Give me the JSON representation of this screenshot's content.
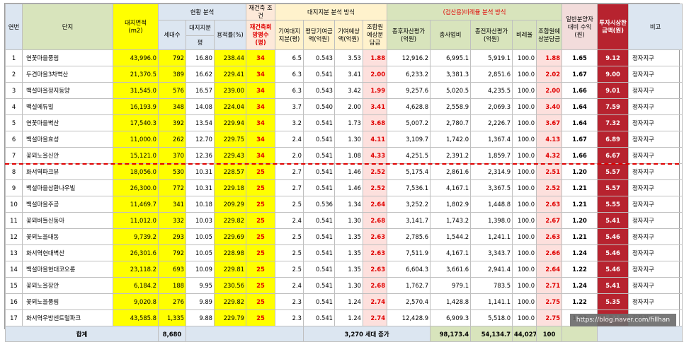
{
  "header": {
    "no": "연번",
    "name": "단지",
    "area": "대지면적",
    "area_unit": "(m2)",
    "group_current": "현황 분석",
    "group_rebuild": "재건축 조건",
    "households": "세대수",
    "land_share": "대지지분",
    "land_share_unit": "평",
    "far": "용적률(%)",
    "desired": "재건축희망평수(평)",
    "group_land": "대지지분 분석 방식",
    "land_pyeong": "기여대지지분(평)",
    "price_per_py": "평당기여금액(억원)",
    "contrib_value": "기여예상액(억원)",
    "share_ret": "조합원예상분담금",
    "group_ratio": "(검산용)비례율 분석 방식",
    "after_asset": "종후자산평가(억원)",
    "project_cost": "총사업비",
    "before_asset": "종전자산평가(억원)",
    "ratio": "비례율",
    "share_ret2": "조합원예상분담금",
    "general_sale": "일반분양자대비 수익(원)",
    "invest": "투자시상한금액(원)",
    "note": "비고"
  },
  "rows": [
    {
      "no": "1",
      "name": "연꽃마을풍림",
      "area": "43,996.0",
      "households": "792",
      "land": "16.80",
      "far": "238.44",
      "desired": "34",
      "lp": "6.5",
      "price": "0.543",
      "cv": "3.53",
      "share": "1.88",
      "after": "12,916.2",
      "cost": "6,995.1",
      "before": "5,919.1",
      "ratio": "100.0",
      "share2": "1.88",
      "sale": "1.65",
      "invest": "9.12",
      "note": "정자지구"
    },
    {
      "no": "2",
      "name": "두견마을3차벽산",
      "area": "21,370.5",
      "households": "389",
      "land": "16.62",
      "far": "229.41",
      "desired": "34",
      "lp": "6.3",
      "price": "0.541",
      "cv": "3.41",
      "share": "2.00",
      "after": "6,233.2",
      "cost": "3,381.3",
      "before": "2,851.6",
      "ratio": "100.0",
      "share2": "2.02",
      "sale": "1.67",
      "invest": "9.00",
      "note": "정자지구"
    },
    {
      "no": "3",
      "name": "백설마을정지동양",
      "area": "31,545.0",
      "households": "576",
      "land": "16.57",
      "far": "239.00",
      "desired": "34",
      "lp": "6.3",
      "price": "0.543",
      "cv": "3.42",
      "share": "1.99",
      "after": "9,257.6",
      "cost": "5,020.5",
      "before": "4,235.5",
      "ratio": "100.0",
      "share2": "2.00",
      "sale": "1.66",
      "invest": "9.01",
      "note": "정자지구"
    },
    {
      "no": "4",
      "name": "백설에듀빌",
      "area": "16,193.9",
      "households": "348",
      "land": "14.08",
      "far": "224.04",
      "desired": "34",
      "lp": "3.7",
      "price": "0.540",
      "cv": "2.00",
      "share": "3.41",
      "after": "4,628.8",
      "cost": "2,558.9",
      "before": "2,069.3",
      "ratio": "100.0",
      "share2": "3.40",
      "sale": "1.64",
      "invest": "7.59",
      "note": "정자지구"
    },
    {
      "no": "5",
      "name": "연꽃마을벽산",
      "area": "17,540.3",
      "households": "392",
      "land": "13.54",
      "far": "229.94",
      "desired": "34",
      "lp": "3.2",
      "price": "0.541",
      "cv": "1.73",
      "share": "3.68",
      "after": "5,007.2",
      "cost": "2,780.7",
      "before": "2,226.7",
      "ratio": "100.0",
      "share2": "3.67",
      "sale": "1.64",
      "invest": "7.32",
      "note": "정자지구"
    },
    {
      "no": "6",
      "name": "백설마을효성",
      "area": "11,000.0",
      "households": "262",
      "land": "12.70",
      "far": "229.75",
      "desired": "34",
      "lp": "2.4",
      "price": "0.541",
      "cv": "1.30",
      "share": "4.11",
      "after": "3,109.7",
      "cost": "1,742.0",
      "before": "1,367.4",
      "ratio": "100.0",
      "share2": "4.13",
      "sale": "1.67",
      "invest": "6.89",
      "note": "정자지구"
    },
    {
      "no": "7",
      "name": "꽃뫼노을신안",
      "area": "15,121.0",
      "households": "370",
      "land": "12.36",
      "far": "229.43",
      "desired": "34",
      "lp": "2.0",
      "price": "0.541",
      "cv": "1.08",
      "share": "4.33",
      "after": "4,251.5",
      "cost": "2,391.2",
      "before": "1,859.7",
      "ratio": "100.0",
      "share2": "4.32",
      "sale": "1.66",
      "invest": "6.67",
      "note": "정자지구"
    },
    {
      "no": "8",
      "name": "화서역파크뷰",
      "area": "18,056.0",
      "households": "530",
      "land": "10.31",
      "far": "228.57",
      "desired": "25",
      "lp": "2.7",
      "price": "0.541",
      "cv": "1.46",
      "share": "2.52",
      "after": "5,175.4",
      "cost": "2,861.6",
      "before": "2,314.9",
      "ratio": "100.0",
      "share2": "2.51",
      "sale": "1.20",
      "invest": "5.57",
      "note": "정자지구"
    },
    {
      "no": "9",
      "name": "백설마을삼환나우빌",
      "area": "26,300.0",
      "households": "772",
      "land": "10.31",
      "far": "229.18",
      "desired": "25",
      "lp": "2.7",
      "price": "0.541",
      "cv": "1.46",
      "share": "2.52",
      "after": "7,536.1",
      "cost": "4,167.1",
      "before": "3,367.5",
      "ratio": "100.0",
      "share2": "2.52",
      "sale": "1.21",
      "invest": "5.57",
      "note": "정자지구"
    },
    {
      "no": "10",
      "name": "백설마을주공",
      "area": "11,469.7",
      "households": "341",
      "land": "10.18",
      "far": "209.29",
      "desired": "25",
      "lp": "2.5",
      "price": "0.536",
      "cv": "1.34",
      "share": "2.64",
      "after": "3,252.2",
      "cost": "1,802.9",
      "before": "1,448.8",
      "ratio": "100.0",
      "share2": "2.63",
      "sale": "1.21",
      "invest": "5.55",
      "note": "정자지구"
    },
    {
      "no": "11",
      "name": "꽃뫼버들신동아",
      "area": "11,012.0",
      "households": "332",
      "land": "10.03",
      "far": "229.82",
      "desired": "25",
      "lp": "2.4",
      "price": "0.541",
      "cv": "1.30",
      "share": "2.68",
      "after": "3,141.7",
      "cost": "1,743.2",
      "before": "1,398.0",
      "ratio": "100.0",
      "share2": "2.67",
      "sale": "1.20",
      "invest": "5.41",
      "note": "정자지구"
    },
    {
      "no": "12",
      "name": "꽃뫼노을대동",
      "area": "9,739.2",
      "households": "293",
      "land": "10.05",
      "far": "229.69",
      "desired": "25",
      "lp": "2.5",
      "price": "0.541",
      "cv": "1.35",
      "share": "2.63",
      "after": "2,785.6",
      "cost": "1,544.2",
      "before": "1,241.1",
      "ratio": "100.0",
      "share2": "2.63",
      "sale": "1.21",
      "invest": "5.46",
      "note": "정자지구"
    },
    {
      "no": "13",
      "name": "화서역현대벽산",
      "area": "26,301.6",
      "households": "792",
      "land": "10.05",
      "far": "228.98",
      "desired": "25",
      "lp": "2.5",
      "price": "0.541",
      "cv": "1.35",
      "share": "2.63",
      "after": "7,511.9",
      "cost": "4,167.1",
      "before": "3,343.7",
      "ratio": "100.0",
      "share2": "2.66",
      "sale": "1.24",
      "invest": "5.46",
      "note": "정자지구"
    },
    {
      "no": "14",
      "name": "백설마을현대코오롱",
      "area": "23,118.2",
      "households": "693",
      "land": "10.09",
      "far": "229.81",
      "desired": "25",
      "lp": "2.5",
      "price": "0.541",
      "cv": "1.35",
      "share": "2.63",
      "after": "6,604.3",
      "cost": "3,661.6",
      "before": "2,941.4",
      "ratio": "100.0",
      "share2": "2.64",
      "sale": "1.22",
      "invest": "5.46",
      "note": "정자지구"
    },
    {
      "no": "15",
      "name": "꽃뫼노을장안",
      "area": "6,184.2",
      "households": "188",
      "land": "9.95",
      "far": "230.56",
      "desired": "25",
      "lp": "2.4",
      "price": "0.541",
      "cv": "1.30",
      "share": "2.68",
      "after": "1,762.7",
      "cost": "979.1",
      "before": "783.5",
      "ratio": "100.0",
      "share2": "2.71",
      "sale": "1.24",
      "invest": "5.41",
      "note": "정자지구"
    },
    {
      "no": "16",
      "name": "꽃뫼노을풍림",
      "area": "9,020.8",
      "households": "276",
      "land": "9.89",
      "far": "229.82",
      "desired": "25",
      "lp": "2.3",
      "price": "0.541",
      "cv": "1.24",
      "share": "2.74",
      "after": "2,570.4",
      "cost": "1,428.8",
      "before": "1,141.1",
      "ratio": "100.0",
      "share2": "2.75",
      "sale": "1.22",
      "invest": "5.35",
      "note": "정자지구"
    },
    {
      "no": "17",
      "name": "화서역우방센트럴파크",
      "area": "43,585.8",
      "households": "1,335",
      "land": "9.88",
      "far": "229.79",
      "desired": "25",
      "lp": "2.3",
      "price": "0.541",
      "cv": "1.24",
      "share": "2.74",
      "after": "12,428.9",
      "cost": "6,909.3",
      "before": "5,518.0",
      "ratio": "100.0",
      "share2": "2.75",
      "sale": "1.22",
      "invest": "5.35",
      "note": "정자지구"
    }
  ],
  "footer": {
    "label": "합계",
    "households": "8,680",
    "increase": "3,270 세대 증가",
    "after": "98,173.4",
    "cost": "54,134.7",
    "before": "44,027.3",
    "ratio": "100"
  },
  "watermark": "https://blog.naver.com/fillhan",
  "colors": {
    "yellow": "#ffff00",
    "dark_red": "#b7232f",
    "header_blue": "#dce6f1",
    "header_green": "#d8e4bc",
    "red_text": "#e00000"
  }
}
